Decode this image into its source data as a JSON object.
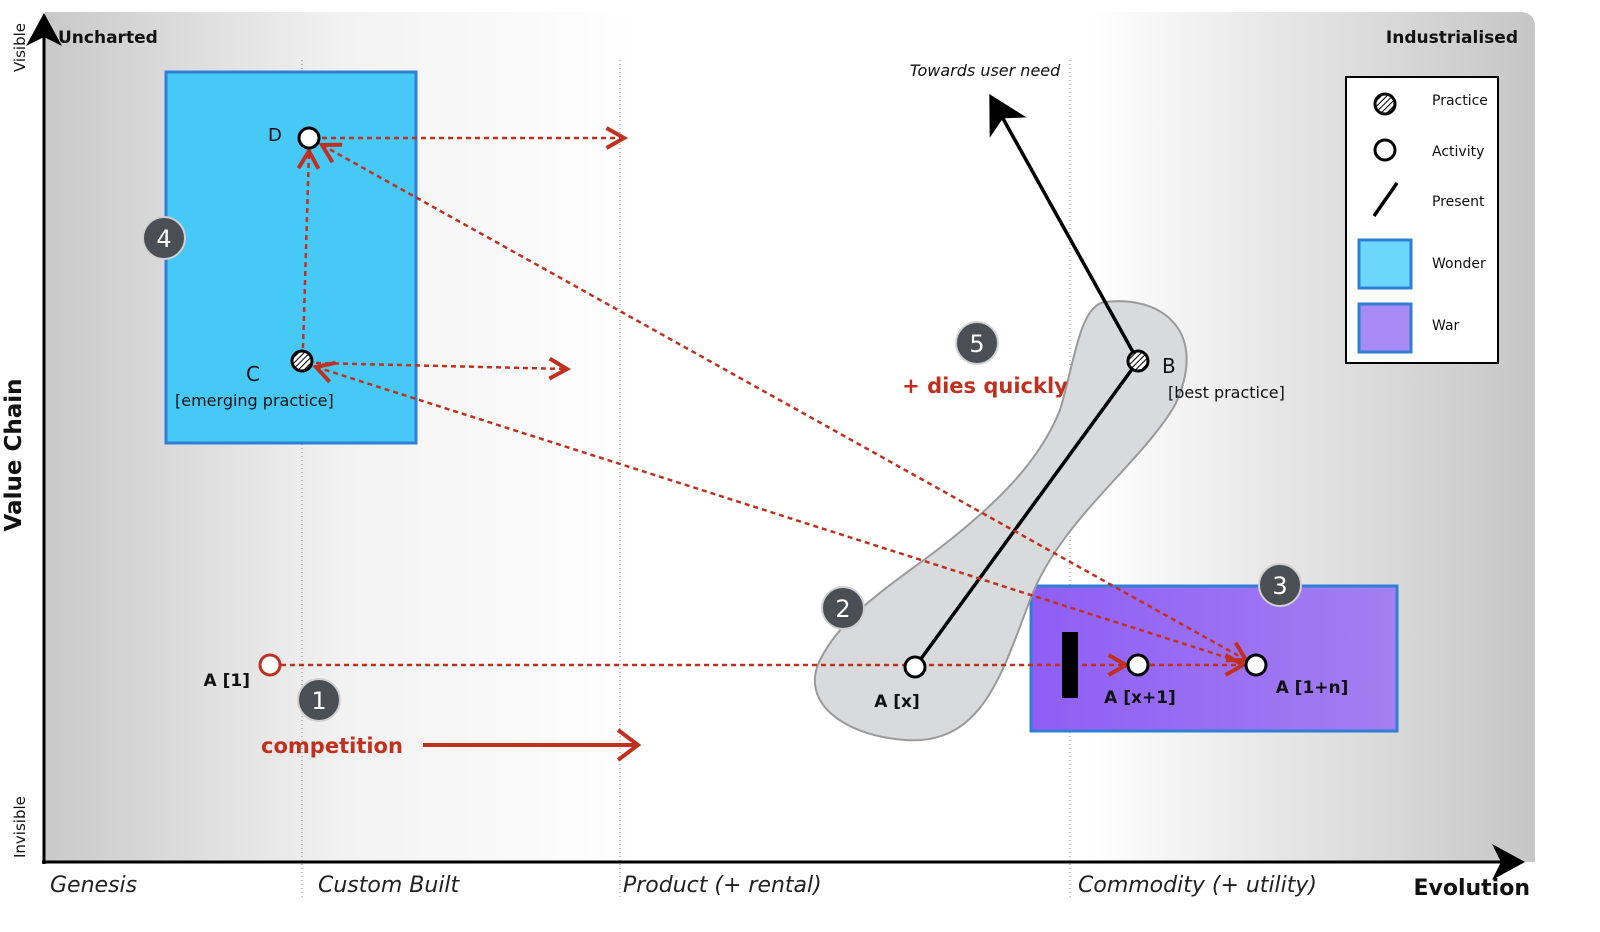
{
  "axes": {
    "y_title": "Value Chain",
    "y_top": "Visible",
    "y_bottom": "Invisible",
    "x_title": "Evolution",
    "top_left": "Uncharted",
    "top_right": "Industrialised",
    "stages": [
      "Genesis",
      "Custom Built",
      "Product (+ rental)",
      "Commodity (+ utility)"
    ]
  },
  "components": {
    "d": "D",
    "c": "C",
    "c_note": "[emerging practice]",
    "b": "B",
    "b_note": "[best practice]",
    "a1": "A [1]",
    "ax": "A [x]",
    "ax1": "A [x+1]",
    "a1n": "A [1+n]"
  },
  "annotations": {
    "towards": "Towards user need",
    "dies": "+ dies quickly",
    "competition": "competition",
    "badges": [
      "1",
      "2",
      "3",
      "4",
      "5"
    ]
  },
  "legend": {
    "practice": "Practice",
    "activity": "Activity",
    "present": "Present",
    "wonder": "Wonder",
    "war": "War"
  },
  "colors": {
    "wonder": "#47c9f7",
    "war": "#9a70f2",
    "border": "#2f7fd6",
    "red": "#c0301f",
    "badge": "#4a4f55"
  }
}
